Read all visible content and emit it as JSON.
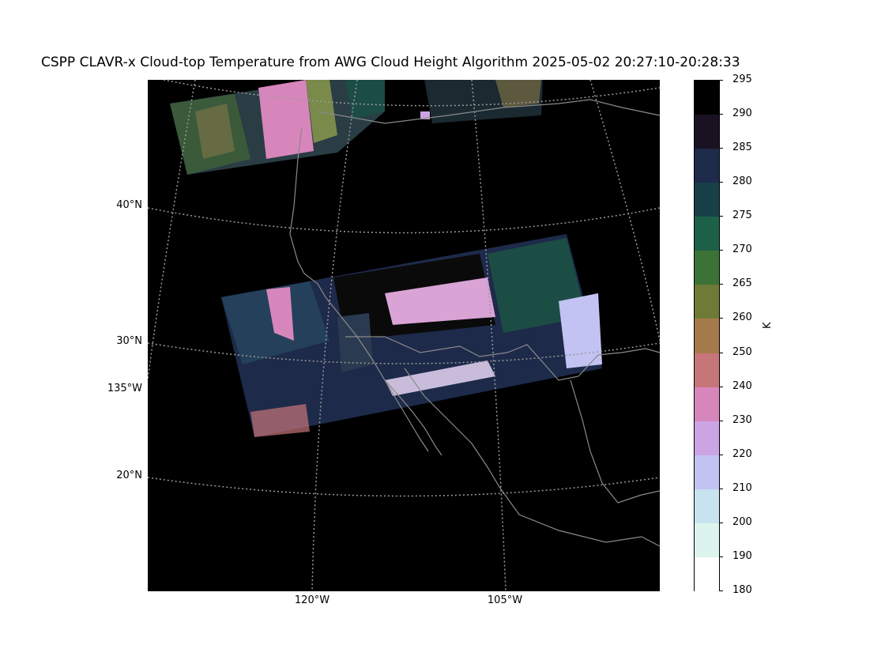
{
  "title": "CSPP CLAVR-x Cloud-top Temperature from AWG Cloud Height Algorithm 2025-05-02 20:27:10-20:28:33",
  "lat_labels": [
    "40°N",
    "30°N",
    "20°N"
  ],
  "lon_labels": [
    "135°W",
    "120°W",
    "105°W"
  ],
  "colorbar": {
    "unit": "K",
    "ticks": [
      "295",
      "290",
      "285",
      "280",
      "275",
      "270",
      "265",
      "260",
      "250",
      "240",
      "230",
      "220",
      "210",
      "200",
      "190",
      "180"
    ],
    "colors": [
      "#000000",
      "#1a1222",
      "#1e2a4a",
      "#174048",
      "#1c6147",
      "#3b7336",
      "#6e7a35",
      "#a57a4b",
      "#c67578",
      "#d786bc",
      "#cba4e4",
      "#c3c3f3",
      "#c8e2f0",
      "#ddf3ee",
      "#ffffff"
    ]
  },
  "colors": {
    "map_background": "#000000",
    "coastline": "#8a8a8a",
    "gridline": "#9a9a9a"
  }
}
